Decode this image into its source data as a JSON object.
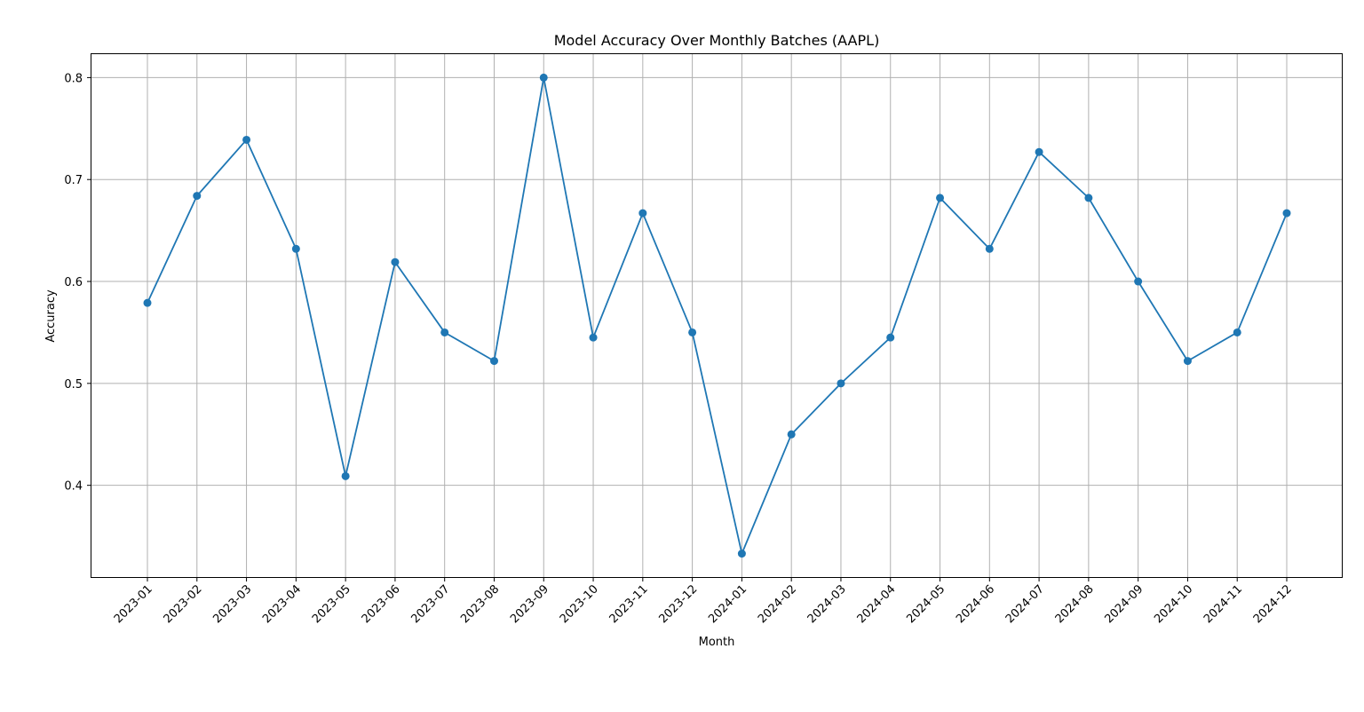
{
  "chart_data": {
    "type": "line",
    "title": "Model Accuracy Over Monthly Batches (AAPL)",
    "xlabel": "Month",
    "ylabel": "Accuracy",
    "categories": [
      "2023-01",
      "2023-02",
      "2023-03",
      "2023-04",
      "2023-05",
      "2023-06",
      "2023-07",
      "2023-08",
      "2023-09",
      "2023-10",
      "2023-11",
      "2023-12",
      "2024-01",
      "2024-02",
      "2024-03",
      "2024-04",
      "2024-05",
      "2024-06",
      "2024-07",
      "2024-08",
      "2024-09",
      "2024-10",
      "2024-11",
      "2024-12"
    ],
    "series": [
      {
        "values": [
          0.579,
          0.684,
          0.739,
          0.632,
          0.409,
          0.619,
          0.55,
          0.522,
          0.8,
          0.545,
          0.667,
          0.55,
          0.333,
          0.45,
          0.5,
          0.545,
          0.682,
          0.632,
          0.727,
          0.682,
          0.6,
          0.522,
          0.55,
          0.667
        ],
        "color": "#1f77b4",
        "marker": "circle"
      }
    ],
    "ylim": [
      0.31,
      0.823
    ],
    "yticks": [
      0.4,
      0.5,
      0.6,
      0.7,
      0.8
    ],
    "ytick_labels": [
      "0.4",
      "0.5",
      "0.6",
      "0.7",
      "0.8"
    ],
    "grid": true,
    "grid_color": "#b0b0b0",
    "legend": false
  }
}
